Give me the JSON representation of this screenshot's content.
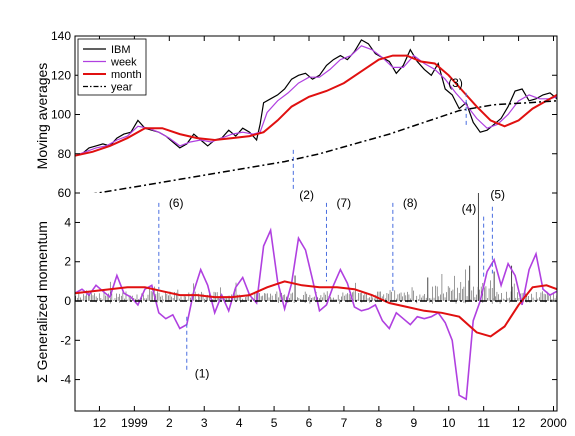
{
  "chart_data": {
    "type": "line",
    "x_tick_labels": [
      "12",
      "1999",
      "2",
      "3",
      "4",
      "5",
      "6",
      "7",
      "8",
      "9",
      "10",
      "11",
      "12",
      "2000"
    ],
    "x_tick_values": [
      12,
      13,
      14,
      15,
      16,
      17,
      18,
      19,
      20,
      21,
      22,
      23,
      24,
      25
    ],
    "xlim": [
      11.3,
      25.1
    ],
    "top_panel": {
      "ylabel": "Moving averages",
      "ylim": [
        60,
        140
      ],
      "yticks": [
        60,
        80,
        100,
        120,
        140
      ],
      "legend_position": "top-left",
      "series": [
        {
          "name": "IBM",
          "color": "#000000",
          "style": "solid",
          "x": [
            11.3,
            11.5,
            11.7,
            11.9,
            12.1,
            12.3,
            12.5,
            12.7,
            12.9,
            13.1,
            13.3,
            13.5,
            13.7,
            13.9,
            14.1,
            14.3,
            14.5,
            14.7,
            14.9,
            15.1,
            15.3,
            15.5,
            15.7,
            15.9,
            16.1,
            16.3,
            16.5,
            16.6,
            16.7,
            16.9,
            17.1,
            17.3,
            17.5,
            17.7,
            17.9,
            18.1,
            18.3,
            18.5,
            18.7,
            18.9,
            19.1,
            19.3,
            19.5,
            19.7,
            19.9,
            20.1,
            20.3,
            20.5,
            20.7,
            20.9,
            21.1,
            21.3,
            21.5,
            21.7,
            21.9,
            22.1,
            22.3,
            22.5,
            22.7,
            22.9,
            23.1,
            23.3,
            23.5,
            23.7,
            23.9,
            24.1,
            24.3,
            24.5,
            24.7,
            24.9,
            25.1
          ],
          "y": [
            79,
            80,
            83,
            84,
            85,
            84,
            88,
            90,
            91,
            97,
            93,
            92,
            91,
            89,
            86,
            83,
            85,
            90,
            87,
            84,
            87,
            88,
            92,
            89,
            93,
            91,
            87,
            95,
            106,
            108,
            110,
            113,
            118,
            120,
            121,
            118,
            120,
            125,
            128,
            130,
            128,
            132,
            138,
            136,
            131,
            129,
            127,
            121,
            125,
            133,
            127,
            123,
            120,
            126,
            113,
            110,
            103,
            106,
            96,
            91,
            92,
            95,
            98,
            104,
            112,
            113,
            107,
            108,
            110,
            111,
            108
          ]
        },
        {
          "name": "week",
          "color": "#b040e0",
          "style": "solid",
          "x": [
            11.3,
            11.6,
            11.9,
            12.2,
            12.5,
            12.8,
            13.1,
            13.4,
            13.7,
            14.0,
            14.3,
            14.6,
            14.9,
            15.2,
            15.5,
            15.8,
            16.1,
            16.4,
            16.6,
            16.8,
            17.1,
            17.4,
            17.7,
            18.0,
            18.3,
            18.6,
            18.9,
            19.2,
            19.5,
            19.8,
            20.1,
            20.4,
            20.7,
            21.0,
            21.3,
            21.6,
            21.9,
            22.2,
            22.5,
            22.8,
            23.1,
            23.4,
            23.7,
            24.0,
            24.3,
            24.6,
            24.9,
            25.1
          ],
          "y": [
            79,
            81,
            83,
            84,
            87,
            89,
            94,
            93,
            91,
            88,
            84,
            86,
            87,
            86,
            88,
            90,
            91,
            90,
            91,
            101,
            107,
            111,
            116,
            119,
            119,
            123,
            128,
            130,
            135,
            133,
            129,
            124,
            124,
            130,
            126,
            123,
            118,
            111,
            105,
            98,
            93,
            95,
            100,
            107,
            110,
            108,
            108,
            109
          ]
        },
        {
          "name": "month",
          "color": "#e01010",
          "style": "solid",
          "x": [
            11.3,
            11.8,
            12.3,
            12.8,
            13.3,
            13.8,
            14.3,
            14.8,
            15.3,
            15.8,
            16.3,
            16.7,
            17.1,
            17.5,
            18.0,
            18.5,
            19.0,
            19.5,
            20.0,
            20.4,
            20.8,
            21.2,
            21.6,
            22.0,
            22.4,
            22.8,
            23.2,
            23.6,
            24.0,
            24.4,
            24.8,
            25.1
          ],
          "y": [
            79,
            81,
            84,
            88,
            93,
            93,
            90,
            88,
            87,
            88,
            89,
            91,
            97,
            104,
            109,
            112,
            116,
            122,
            128,
            130,
            130,
            127,
            126,
            120,
            112,
            104,
            97,
            94,
            97,
            103,
            107,
            110
          ]
        },
        {
          "name": "year",
          "color": "#000000",
          "style": "dashdot",
          "x": [
            11.3,
            12.3,
            13.3,
            14.3,
            15.3,
            16.3,
            17.3,
            18.3,
            19.3,
            20.3,
            21.3,
            22.3,
            23.3,
            24.3,
            25.1
          ],
          "y": [
            58,
            61,
            64,
            67,
            70,
            73,
            76,
            80,
            85,
            90,
            96,
            102,
            105,
            106,
            107
          ]
        }
      ]
    },
    "bottom_panel": {
      "ylabel": "Σ Generalized momentum",
      "ylim": [
        -5.6,
        5.5
      ],
      "yticks": [
        -4,
        -2,
        0,
        2,
        4
      ],
      "series": [
        {
          "name": "week",
          "color": "#b040e0",
          "x": [
            11.3,
            11.5,
            11.7,
            11.9,
            12.1,
            12.3,
            12.5,
            12.7,
            12.9,
            13.1,
            13.3,
            13.5,
            13.7,
            13.9,
            14.1,
            14.3,
            14.5,
            14.7,
            14.9,
            15.1,
            15.3,
            15.5,
            15.7,
            15.9,
            16.1,
            16.3,
            16.5,
            16.7,
            16.9,
            17.1,
            17.3,
            17.5,
            17.7,
            17.9,
            18.1,
            18.3,
            18.5,
            18.7,
            18.9,
            19.1,
            19.3,
            19.5,
            19.7,
            19.9,
            20.1,
            20.3,
            20.5,
            20.7,
            20.9,
            21.1,
            21.3,
            21.5,
            21.7,
            21.9,
            22.1,
            22.3,
            22.5,
            22.7,
            22.9,
            23.1,
            23.3,
            23.5,
            23.7,
            23.9,
            24.1,
            24.3,
            24.5,
            24.7,
            24.9,
            25.1
          ],
          "y": [
            0.4,
            0.6,
            0.3,
            0.8,
            0.5,
            0.2,
            1.3,
            0.4,
            0.2,
            -0.2,
            0.6,
            0.8,
            -0.6,
            -0.9,
            -0.7,
            -1.4,
            -1.2,
            0.5,
            1.6,
            0.8,
            -0.6,
            0.3,
            -0.5,
            0.7,
            1.2,
            0.3,
            -0.1,
            2.8,
            3.6,
            1.0,
            -0.4,
            0.9,
            3.2,
            2.6,
            1.1,
            -0.5,
            -0.2,
            0.8,
            1.6,
            0.9,
            -0.3,
            -0.5,
            -0.4,
            -0.2,
            -1.0,
            -1.4,
            -0.6,
            -0.9,
            -1.2,
            -0.8,
            -0.9,
            -0.8,
            -0.6,
            -1.1,
            -2.0,
            -4.8,
            -5.0,
            -1.0,
            0.0,
            1.5,
            2.1,
            0.8,
            1.9,
            1.3,
            -0.2,
            1.6,
            2.4,
            0.6,
            0.3,
            0.5
          ]
        },
        {
          "name": "month",
          "color": "#e01010",
          "x": [
            11.3,
            11.8,
            12.3,
            12.8,
            13.3,
            13.8,
            14.3,
            14.8,
            15.3,
            15.8,
            16.3,
            16.8,
            17.3,
            17.8,
            18.3,
            18.8,
            19.3,
            19.8,
            20.3,
            20.8,
            21.3,
            21.8,
            22.3,
            22.8,
            23.2,
            23.6,
            24.0,
            24.4,
            24.8,
            25.1
          ],
          "y": [
            0.4,
            0.5,
            0.6,
            0.7,
            0.7,
            0.5,
            0.3,
            0.3,
            0.2,
            0.2,
            0.3,
            0.7,
            1.0,
            0.8,
            0.7,
            0.7,
            0.6,
            0.3,
            -0.1,
            -0.3,
            -0.5,
            -0.6,
            -0.8,
            -1.6,
            -1.8,
            -1.3,
            -0.2,
            0.7,
            0.8,
            0.6
          ]
        },
        {
          "name": "year",
          "color": "#000000",
          "style": "dashdot",
          "x": [
            11.3,
            25.1
          ],
          "y": [
            0.0,
            0.0
          ]
        }
      ],
      "spikes_seed": 7,
      "spikes_big": [
        {
          "x": 17.6,
          "y": 1.3
        },
        {
          "x": 21.4,
          "y": 1.2
        },
        {
          "x": 22.6,
          "y": 1.8
        },
        {
          "x": 22.85,
          "y": 7.0
        },
        {
          "x": 23.3,
          "y": 1.5
        },
        {
          "x": 23.8,
          "y": 1.8
        }
      ]
    },
    "annotations": [
      {
        "label": "(1)",
        "x": 14.5,
        "y_top": -0.8,
        "y_bottom": -3.6
      },
      {
        "label": "(2)",
        "x": 17.55,
        "y_top": 82,
        "y_bottom": 62
      },
      {
        "label": "(3)",
        "x": 22.5,
        "y_top": 111,
        "y_bottom": 94
      },
      {
        "label": "(4)",
        "x": 23.0,
        "y_top": 4.3,
        "y_bottom": 1.2
      },
      {
        "label": "(5)",
        "x": 23.25,
        "y_top": 4.8,
        "y_bottom": 1.4
      },
      {
        "label": "(6)",
        "x": 13.7,
        "y_top": 5.0,
        "y_bottom": 0.6
      },
      {
        "label": "(7)",
        "x": 18.5,
        "y_top": 5.0,
        "y_bottom": 1.0
      },
      {
        "label": "(8)",
        "x": 20.4,
        "y_top": 5.0,
        "y_bottom": 0.5
      }
    ],
    "annotation_color": "#4a6ee0"
  }
}
